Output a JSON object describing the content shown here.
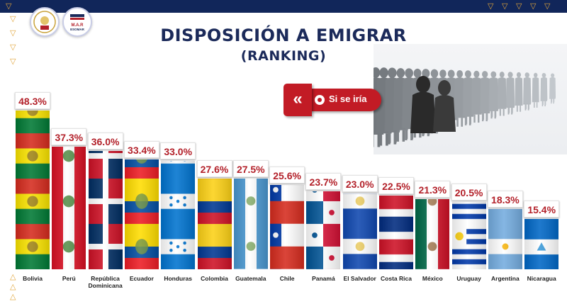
{
  "header": {
    "title": "DISPOSICIÓN A EMIGRAR",
    "subtitle": "(RANKING)"
  },
  "legend": {
    "label": "Si se iría",
    "chevron": "«",
    "color": "#c21b25"
  },
  "logos": [
    {
      "name": "seal-logo",
      "text": ""
    },
    {
      "name": "mar-logo",
      "text": "M.A.R ESOMAR"
    }
  ],
  "chart_data": {
    "type": "bar",
    "title": "DISPOSICIÓN A EMIGRAR",
    "subtitle": "(RANKING)",
    "series_name": "Si se iría",
    "unit": "%",
    "ylim": [
      0,
      50
    ],
    "grid": false,
    "categories": [
      "Bolivia",
      "Perú",
      "República Dominicana",
      "Ecuador",
      "Honduras",
      "Colombia",
      "Guatemala",
      "Chile",
      "Panamá",
      "El Salvador",
      "Costa Rica",
      "México",
      "Uruguay",
      "Argentina",
      "Nicaragua"
    ],
    "category_lines": [
      [
        "Bolivia"
      ],
      [
        "Perú"
      ],
      [
        "República",
        "Dominicana"
      ],
      [
        "Ecuador"
      ],
      [
        "Honduras"
      ],
      [
        "Colombia"
      ],
      [
        "Guatemala"
      ],
      [
        "Chile"
      ],
      [
        "Panamá"
      ],
      [
        "El Salvador"
      ],
      [
        "Costa Rica"
      ],
      [
        "México"
      ],
      [
        "Uruguay"
      ],
      [
        "Argentina"
      ],
      [
        "Nicaragua"
      ]
    ],
    "values": [
      48.3,
      37.3,
      36.0,
      33.4,
      33.0,
      27.6,
      27.5,
      25.6,
      23.7,
      23.0,
      22.5,
      21.3,
      20.5,
      18.3,
      15.4
    ],
    "value_labels": [
      "48.3%",
      "37.3%",
      "36.0%",
      "33.4%",
      "33.0%",
      "27.6%",
      "27.5%",
      "25.6%",
      "23.7%",
      "23.0%",
      "22.5%",
      "21.3%",
      "20.5%",
      "18.3%",
      "15.4%"
    ],
    "bar_fill": "country-flag",
    "flags": [
      "bolivia-flag",
      "peru-flag",
      "dominican-republic-flag",
      "ecuador-flag",
      "honduras-flag",
      "colombia-flag",
      "guatemala-flag",
      "chile-flag",
      "panama-flag",
      "el-salvador-flag",
      "costa-rica-flag",
      "mexico-flag",
      "uruguay-flag",
      "argentina-flag",
      "nicaragua-flag"
    ]
  },
  "colors": {
    "title": "#1b2a5a",
    "value_text": "#b3212a",
    "top_bar": "#11265a",
    "accent_triangle": "#e0a43a"
  }
}
